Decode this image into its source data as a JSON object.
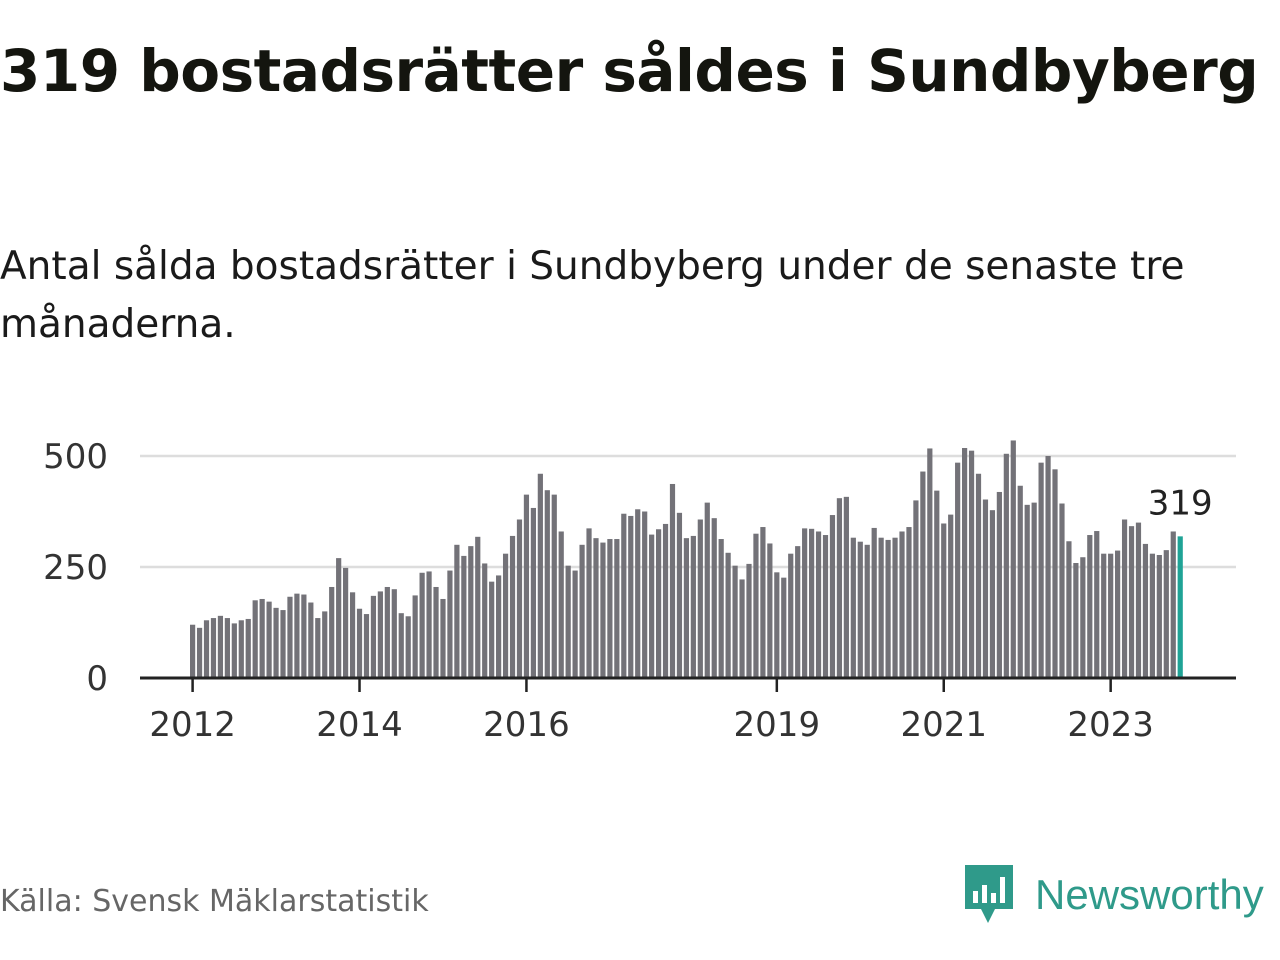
{
  "title": "319 bostadsrätter såldes i Sundbyberg",
  "subtitle": "Antal sålda bostadsrätter i Sundbyberg under de senaste tre månaderna.",
  "source": "Källa: Svensk Mäklarstatistik",
  "brand": {
    "name": "Newsworthy",
    "icon": "newsworthy-logo-icon",
    "color": "#2f9a8a"
  },
  "colors": {
    "bar": "#737278",
    "highlight": "#1fa396",
    "grid": "#dddddd",
    "axis": "#222222"
  },
  "chart_data": {
    "type": "bar",
    "title": "319 bostadsrätter såldes i Sundbyberg",
    "xlabel": "",
    "ylabel": "",
    "ylim": [
      0,
      560
    ],
    "yticks": [
      0,
      250,
      500
    ],
    "ytick_labels": [
      "0",
      "250",
      "500"
    ],
    "grid": true,
    "x_tick_labels": [
      {
        "label": "2012",
        "index": 0
      },
      {
        "label": "2014",
        "index": 24
      },
      {
        "label": "2016",
        "index": 48
      },
      {
        "label": "2019",
        "index": 84
      },
      {
        "label": "2021",
        "index": 108
      },
      {
        "label": "2023",
        "index": 132
      }
    ],
    "highlight": {
      "index": 142,
      "label": "319"
    },
    "values": [
      120,
      113,
      130,
      135,
      140,
      135,
      123,
      130,
      133,
      175,
      178,
      172,
      158,
      153,
      183,
      190,
      188,
      170,
      135,
      150,
      205,
      270,
      248,
      193,
      156,
      144,
      185,
      195,
      205,
      200,
      146,
      139,
      186,
      237,
      240,
      205,
      178,
      242,
      300,
      275,
      297,
      318,
      258,
      217,
      231,
      280,
      320,
      357,
      413,
      383,
      460,
      423,
      413,
      330,
      253,
      242,
      300,
      337,
      315,
      305,
      313,
      313,
      370,
      365,
      380,
      375,
      323,
      335,
      347,
      437,
      372,
      315,
      320,
      357,
      395,
      360,
      313,
      282,
      253,
      222,
      257,
      325,
      340,
      303,
      238,
      226,
      280,
      297,
      337,
      336,
      330,
      322,
      367,
      405,
      408,
      316,
      307,
      300,
      338,
      316,
      311,
      316,
      330,
      340,
      400,
      465,
      517,
      422,
      348,
      368,
      485,
      518,
      512,
      460,
      402,
      378,
      419,
      505,
      535,
      433,
      390,
      395,
      485,
      500,
      470,
      393,
      308,
      259,
      272,
      322,
      331,
      280,
      280,
      287,
      357,
      342,
      350,
      302,
      280,
      277,
      288,
      330,
      319
    ]
  }
}
